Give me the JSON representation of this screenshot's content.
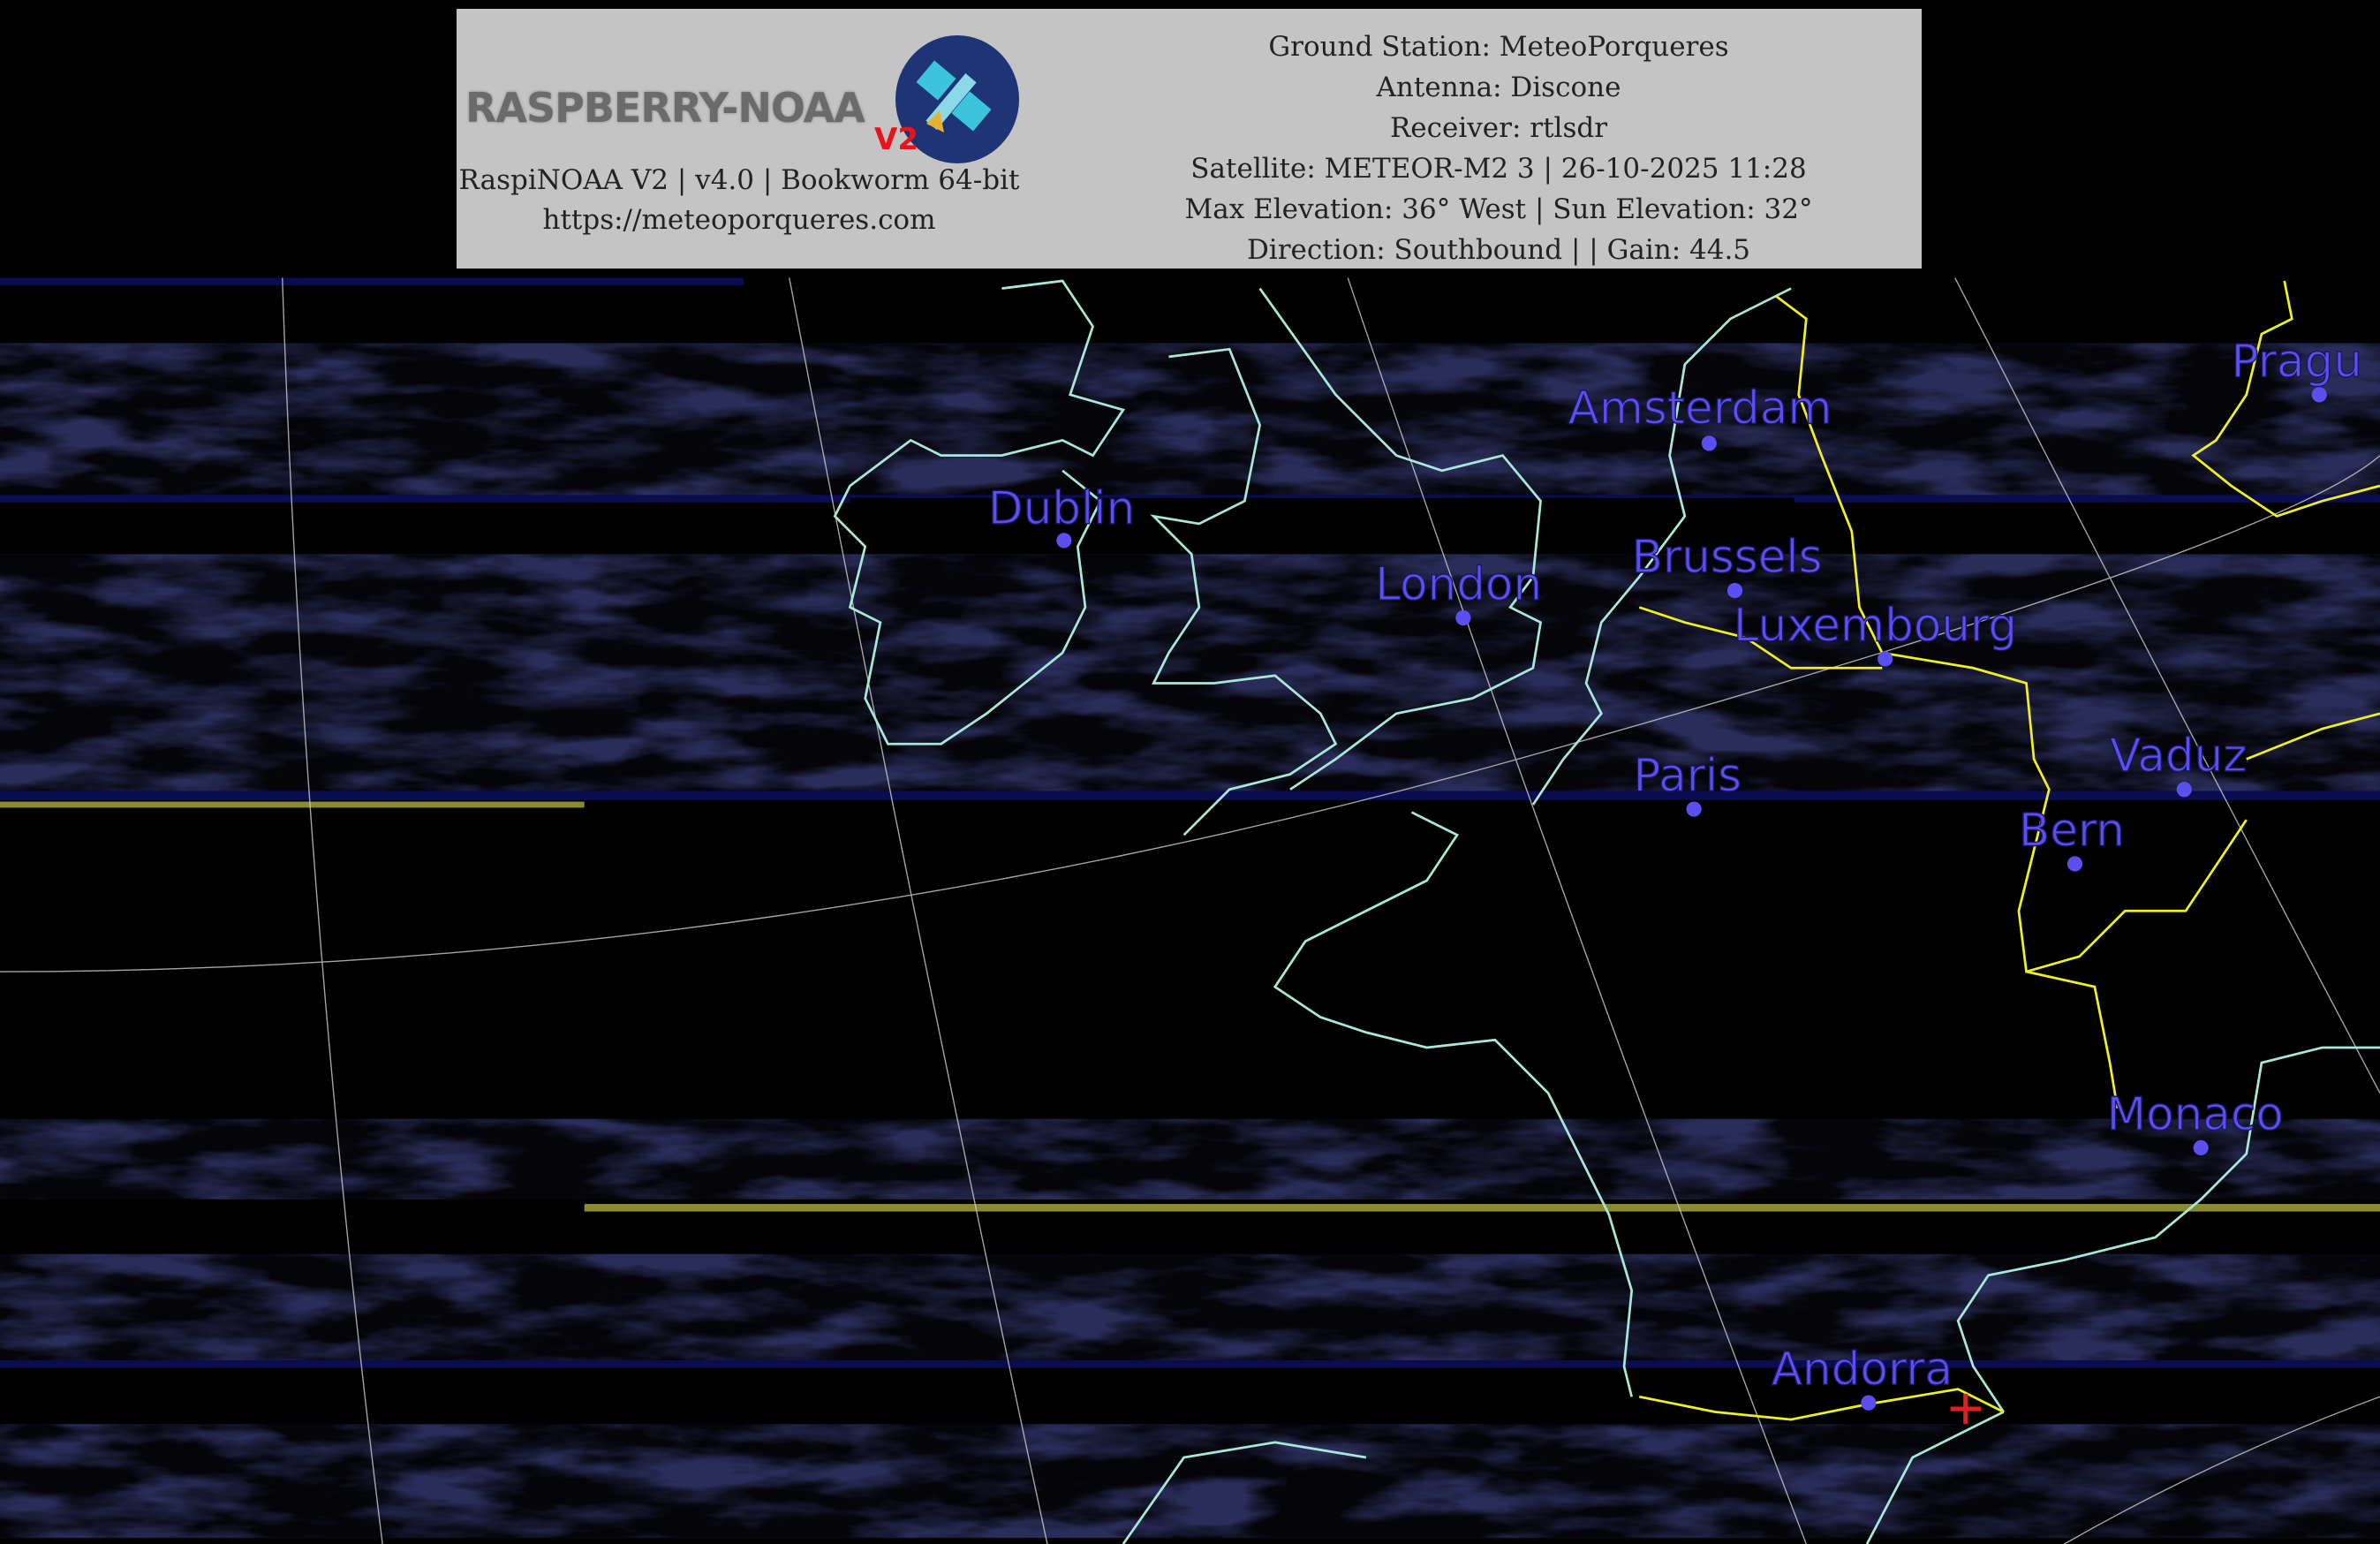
{
  "header": {
    "logo_text": "RASPBERRY-NOAA",
    "logo_version": "V2",
    "software_line": "RaspiNOAA V2 | v4.0 | Bookworm 64-bit",
    "website": "https://meteoporqueres.com",
    "ground_station": "Ground Station: MeteoPorqueres",
    "antenna": "Antenna: Discone",
    "receiver": "Receiver: rtlsdr",
    "satellite": "Satellite: METEOR-M2 3 | 26-10-2025 11:28",
    "elevation": "Max Elevation: 36° West | Sun Elevation: 32°",
    "direction": "Direction: Southbound | | Gain: 44.5"
  },
  "colors": {
    "cloud": "#d8d640",
    "ground": "#1c1f5c",
    "coastline": "#a8e8d8",
    "border": "#f0f020",
    "city": "#5b4ff0",
    "station_marker": "#e02020"
  },
  "cities": [
    {
      "name": "Dublin"
    },
    {
      "name": "London"
    },
    {
      "name": "Amsterdam"
    },
    {
      "name": "Brussels"
    },
    {
      "name": "Luxembourg"
    },
    {
      "name": "Paris"
    },
    {
      "name": "Pragu"
    },
    {
      "name": "Vaduz"
    },
    {
      "name": "Bern"
    },
    {
      "name": "Monaco"
    },
    {
      "name": "Andorra"
    }
  ]
}
